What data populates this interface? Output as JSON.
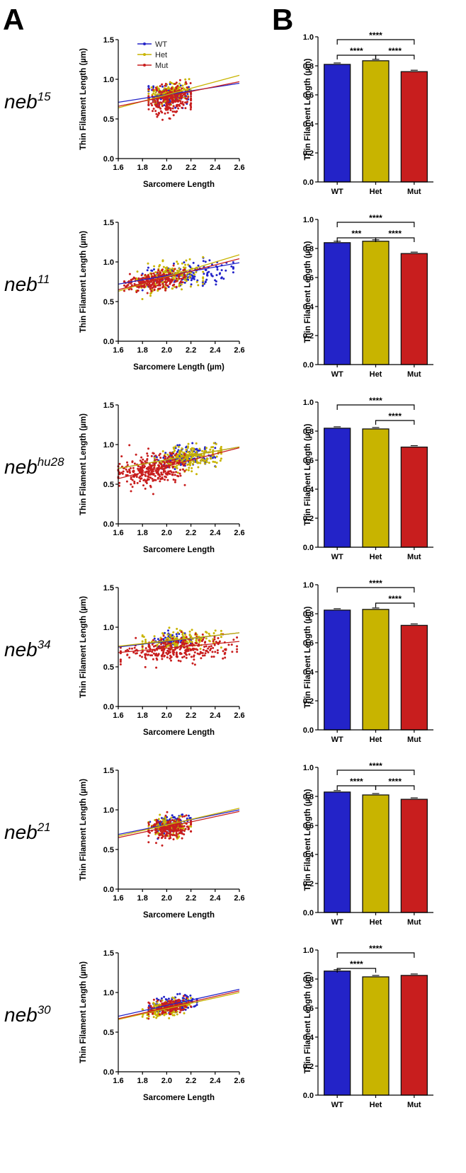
{
  "panel_labels": [
    "A",
    "B"
  ],
  "legend": [
    {
      "label": "WT",
      "color": "#2323c8"
    },
    {
      "label": "Het",
      "color": "#c8b400"
    },
    {
      "label": "Mut",
      "color": "#c81e1e"
    }
  ],
  "chart_data": [
    {
      "genotype": "neb",
      "superscript": "15",
      "scatter": {
        "type": "scatter",
        "xlabel": "Sarcomere Length",
        "ylabel": "Thin Filament Length (µm)",
        "xlim": [
          1.6,
          2.6
        ],
        "ylim": [
          0.0,
          1.5
        ],
        "xticks": [
          "1.6",
          "1.8",
          "2.0",
          "2.2",
          "2.4",
          "2.6"
        ],
        "yticks": [
          "0.0",
          "0.5",
          "1.0",
          "1.5"
        ],
        "show_legend": true,
        "series": [
          {
            "label": "WT",
            "color": "#2323c8",
            "x_range": [
              1.85,
              2.2
            ],
            "y_center": 0.8,
            "y_spread": 0.06,
            "n": 160,
            "fit": [
              [
                1.6,
                0.71
              ],
              [
                2.6,
                0.95
              ]
            ]
          },
          {
            "label": "Het",
            "color": "#c8b400",
            "x_range": [
              1.85,
              2.2
            ],
            "y_center": 0.83,
            "y_spread": 0.06,
            "n": 160,
            "fit": [
              [
                1.6,
                0.64
              ],
              [
                2.6,
                1.05
              ]
            ]
          },
          {
            "label": "Mut",
            "color": "#c81e1e",
            "x_range": [
              1.85,
              2.2
            ],
            "y_center": 0.74,
            "y_spread": 0.1,
            "n": 260,
            "fit": [
              [
                1.6,
                0.66
              ],
              [
                2.6,
                0.97
              ]
            ]
          }
        ]
      },
      "bar": {
        "type": "bar",
        "ylabel": "Thin Filament Length (µm)",
        "ylim": [
          0.0,
          1.0
        ],
        "yticks": [
          "0.0",
          "0.2",
          "0.4",
          "0.6",
          "0.8",
          "1.0"
        ],
        "categories": [
          "WT",
          "Het",
          "Mut"
        ],
        "values": [
          0.81,
          0.835,
          0.76
        ],
        "significance": [
          {
            "from": 0,
            "to": 2,
            "label": "****"
          },
          {
            "from": 0,
            "to": 1,
            "label": "****"
          },
          {
            "from": 1,
            "to": 2,
            "label": "****"
          }
        ]
      }
    },
    {
      "genotype": "neb",
      "superscript": "11",
      "scatter": {
        "type": "scatter",
        "xlabel": "Sarcomere Length (µm)",
        "ylabel": "Thin Filament Length (µm)",
        "xlim": [
          1.6,
          2.6
        ],
        "ylim": [
          0.0,
          1.5
        ],
        "xticks": [
          "1.6",
          "1.8",
          "2.0",
          "2.2",
          "2.4",
          "2.6"
        ],
        "yticks": [
          "0.0",
          "0.5",
          "1.0",
          "1.5"
        ],
        "show_legend": false,
        "series": [
          {
            "label": "WT",
            "color": "#2323c8",
            "x_range": [
              1.8,
              2.55
            ],
            "y_center": 0.84,
            "y_spread": 0.07,
            "n": 160,
            "fit": [
              [
                1.6,
                0.72
              ],
              [
                2.6,
                0.99
              ]
            ]
          },
          {
            "label": "Het",
            "color": "#c8b400",
            "x_range": [
              1.75,
              2.3
            ],
            "y_center": 0.82,
            "y_spread": 0.09,
            "n": 180,
            "fit": [
              [
                1.6,
                0.63
              ],
              [
                2.6,
                1.09
              ]
            ]
          },
          {
            "label": "Mut",
            "color": "#c81e1e",
            "x_range": [
              1.65,
              2.15
            ],
            "y_center": 0.76,
            "y_spread": 0.06,
            "n": 260,
            "fit": [
              [
                1.6,
                0.65
              ],
              [
                2.6,
                1.04
              ]
            ]
          }
        ]
      },
      "bar": {
        "type": "bar",
        "ylabel": "Thin Filament Length (µm)",
        "ylim": [
          0.0,
          1.0
        ],
        "yticks": [
          "0.0",
          "0.2",
          "0.4",
          "0.6",
          "0.8",
          "1.0"
        ],
        "categories": [
          "WT",
          "Het",
          "Mut"
        ],
        "values": [
          0.84,
          0.85,
          0.765
        ],
        "significance": [
          {
            "from": 0,
            "to": 2,
            "label": "****"
          },
          {
            "from": 0,
            "to": 1,
            "label": "***"
          },
          {
            "from": 1,
            "to": 2,
            "label": "****"
          }
        ]
      }
    },
    {
      "genotype": "neb",
      "superscript": "hu28",
      "scatter": {
        "type": "scatter",
        "xlabel": "Sarcomere Length",
        "ylabel": "Thin Filament Length (µm)",
        "xlim": [
          1.6,
          2.6
        ],
        "ylim": [
          0.0,
          1.5
        ],
        "xticks": [
          "1.6",
          "1.8",
          "2.0",
          "2.2",
          "2.4",
          "2.6"
        ],
        "yticks": [
          "0.0",
          "0.5",
          "1.0",
          "1.5"
        ],
        "show_legend": false,
        "series": [
          {
            "label": "WT",
            "color": "#2323c8",
            "x_range": [
              1.9,
              2.4
            ],
            "y_center": 0.84,
            "y_spread": 0.06,
            "n": 150,
            "fit": [
              [
                1.6,
                0.7
              ],
              [
                2.6,
                0.97
              ]
            ]
          },
          {
            "label": "Het",
            "color": "#c8b400",
            "x_range": [
              1.9,
              2.45
            ],
            "y_center": 0.83,
            "y_spread": 0.07,
            "n": 220,
            "fit": [
              [
                1.6,
                0.7
              ],
              [
                2.6,
                0.97
              ]
            ]
          },
          {
            "label": "Mut",
            "color": "#c81e1e",
            "x_range": [
              1.6,
              2.15
            ],
            "y_center": 0.68,
            "y_spread": 0.1,
            "n": 320,
            "fit": [
              [
                1.6,
                0.57
              ],
              [
                2.6,
                0.96
              ]
            ]
          }
        ]
      },
      "bar": {
        "type": "bar",
        "ylabel": "Thin Filament Length (µm)",
        "ylim": [
          0.0,
          1.0
        ],
        "yticks": [
          "0.0",
          "0.2",
          "0.4",
          "0.6",
          "0.8",
          "1.0"
        ],
        "categories": [
          "WT",
          "Het",
          "Mut"
        ],
        "values": [
          0.82,
          0.815,
          0.69
        ],
        "significance": [
          {
            "from": 0,
            "to": 2,
            "label": "****"
          },
          {
            "from": 1,
            "to": 2,
            "label": "****"
          }
        ]
      }
    },
    {
      "genotype": "neb",
      "superscript": "34",
      "scatter": {
        "type": "scatter",
        "xlabel": "Sarcomere Length",
        "ylabel": "Thin Filament Length (µm)",
        "xlim": [
          1.6,
          2.6
        ],
        "ylim": [
          0.0,
          1.5
        ],
        "xticks": [
          "1.6",
          "1.8",
          "2.0",
          "2.2",
          "2.4",
          "2.6"
        ],
        "yticks": [
          "0.0",
          "0.5",
          "1.0",
          "1.5"
        ],
        "show_legend": false,
        "series": [
          {
            "label": "WT",
            "color": "#2323c8",
            "x_range": [
              1.9,
              2.2
            ],
            "y_center": 0.83,
            "y_spread": 0.05,
            "n": 80,
            "fit": [
              [
                1.6,
                0.75
              ],
              [
                2.6,
                0.93
              ]
            ]
          },
          {
            "label": "Het",
            "color": "#c8b400",
            "x_range": [
              1.8,
              2.45
            ],
            "y_center": 0.84,
            "y_spread": 0.06,
            "n": 150,
            "fit": [
              [
                1.6,
                0.76
              ],
              [
                2.6,
                0.93
              ]
            ]
          },
          {
            "label": "Mut",
            "color": "#c81e1e",
            "x_range": [
              1.62,
              2.58
            ],
            "y_center": 0.73,
            "y_spread": 0.08,
            "n": 300,
            "fit": [
              [
                1.6,
                0.68
              ],
              [
                2.6,
                0.82
              ]
            ]
          }
        ]
      },
      "bar": {
        "type": "bar",
        "ylabel": "Thin Filament Length (µm)",
        "ylim": [
          0.0,
          1.0
        ],
        "yticks": [
          "0.0",
          "0.2",
          "0.4",
          "0.6",
          "0.8",
          "1.0"
        ],
        "categories": [
          "WT",
          "Het",
          "Mut"
        ],
        "values": [
          0.825,
          0.83,
          0.72
        ],
        "significance": [
          {
            "from": 0,
            "to": 2,
            "label": "****"
          },
          {
            "from": 1,
            "to": 2,
            "label": "****"
          }
        ]
      }
    },
    {
      "genotype": "neb",
      "superscript": "21",
      "scatter": {
        "type": "scatter",
        "xlabel": "Sarcomere Length",
        "ylabel": "Thin Filament Length (µm)",
        "xlim": [
          1.6,
          2.6
        ],
        "ylim": [
          0.0,
          1.5
        ],
        "xticks": [
          "1.6",
          "1.8",
          "2.0",
          "2.2",
          "2.4",
          "2.6"
        ],
        "yticks": [
          "0.0",
          "0.5",
          "1.0",
          "1.5"
        ],
        "show_legend": false,
        "series": [
          {
            "label": "WT",
            "color": "#2323c8",
            "x_range": [
              1.85,
              2.2
            ],
            "y_center": 0.82,
            "y_spread": 0.05,
            "n": 160,
            "fit": [
              [
                1.6,
                0.69
              ],
              [
                2.6,
                1.0
              ]
            ]
          },
          {
            "label": "Het",
            "color": "#c8b400",
            "x_range": [
              1.85,
              2.2
            ],
            "y_center": 0.79,
            "y_spread": 0.06,
            "n": 160,
            "fit": [
              [
                1.6,
                0.67
              ],
              [
                2.6,
                1.02
              ]
            ]
          },
          {
            "label": "Mut",
            "color": "#c81e1e",
            "x_range": [
              1.85,
              2.2
            ],
            "y_center": 0.77,
            "y_spread": 0.06,
            "n": 220,
            "fit": [
              [
                1.6,
                0.65
              ],
              [
                2.6,
                0.98
              ]
            ]
          }
        ]
      },
      "bar": {
        "type": "bar",
        "ylabel": "Thin Filament Length (µm)",
        "ylim": [
          0.0,
          1.0
        ],
        "yticks": [
          "0.0",
          "0.2",
          "0.4",
          "0.6",
          "0.8",
          "1.0"
        ],
        "categories": [
          "WT",
          "Het",
          "Mut"
        ],
        "values": [
          0.83,
          0.81,
          0.78
        ],
        "significance": [
          {
            "from": 0,
            "to": 2,
            "label": "****"
          },
          {
            "from": 0,
            "to": 1,
            "label": "****"
          },
          {
            "from": 1,
            "to": 2,
            "label": "****"
          }
        ]
      }
    },
    {
      "genotype": "neb",
      "superscript": "30",
      "scatter": {
        "type": "scatter",
        "xlabel": "Sarcomere Length",
        "ylabel": "Thin Filament Length (µm)",
        "xlim": [
          1.6,
          2.6
        ],
        "ylim": [
          0.0,
          1.5
        ],
        "xticks": [
          "1.6",
          "1.8",
          "2.0",
          "2.2",
          "2.4",
          "2.6"
        ],
        "yticks": [
          "0.0",
          "0.5",
          "1.0",
          "1.5"
        ],
        "show_legend": false,
        "series": [
          {
            "label": "WT",
            "color": "#2323c8",
            "x_range": [
              1.85,
              2.25
            ],
            "y_center": 0.85,
            "y_spread": 0.05,
            "n": 160,
            "fit": [
              [
                1.6,
                0.7
              ],
              [
                2.6,
                1.04
              ]
            ]
          },
          {
            "label": "Het",
            "color": "#c8b400",
            "x_range": [
              1.8,
              2.2
            ],
            "y_center": 0.8,
            "y_spread": 0.05,
            "n": 150,
            "fit": [
              [
                1.6,
                0.66
              ],
              [
                2.6,
                1.0
              ]
            ]
          },
          {
            "label": "Mut",
            "color": "#c81e1e",
            "x_range": [
              1.85,
              2.2
            ],
            "y_center": 0.82,
            "y_spread": 0.05,
            "n": 160,
            "fit": [
              [
                1.6,
                0.67
              ],
              [
                2.6,
                1.02
              ]
            ]
          }
        ]
      },
      "bar": {
        "type": "bar",
        "ylabel": "Thin Filament Length (µm)",
        "ylim": [
          0.0,
          1.0
        ],
        "yticks": [
          "0.0",
          "0.2",
          "0.4",
          "0.6",
          "0.8",
          "1.0"
        ],
        "categories": [
          "WT",
          "Het",
          "Mut"
        ],
        "values": [
          0.855,
          0.815,
          0.825
        ],
        "significance": [
          {
            "from": 0,
            "to": 2,
            "label": "****"
          },
          {
            "from": 0,
            "to": 1,
            "label": "****"
          }
        ]
      }
    }
  ]
}
